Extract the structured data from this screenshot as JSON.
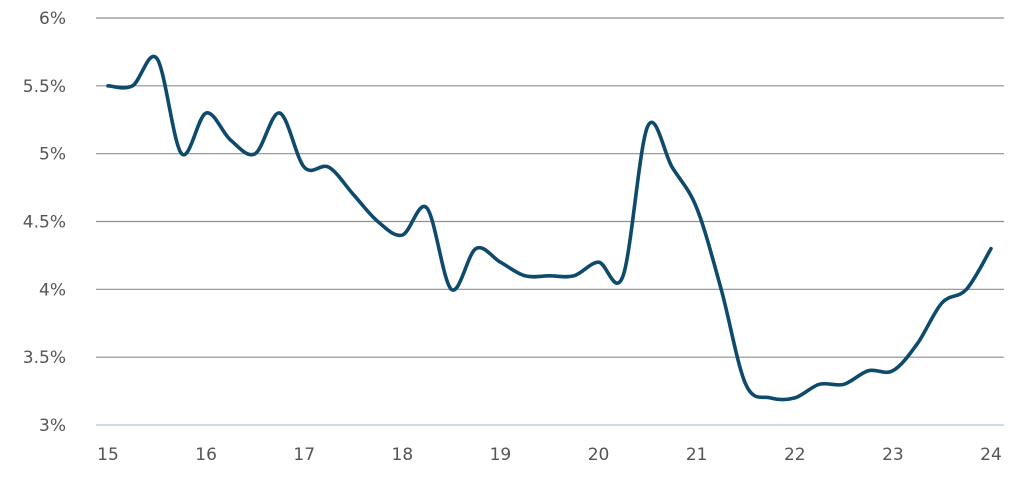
{
  "chart_data": {
    "type": "line",
    "title": "",
    "xlabel": "",
    "ylabel": "",
    "xlim": [
      15,
      24
    ],
    "ylim": [
      3,
      6
    ],
    "x_ticks": [
      15,
      16,
      17,
      18,
      19,
      20,
      21,
      22,
      23,
      24
    ],
    "x_tick_labels": [
      "15",
      "16",
      "17",
      "18",
      "19",
      "20",
      "21",
      "22",
      "23",
      "24"
    ],
    "y_ticks": [
      3,
      3.5,
      4,
      4.5,
      5,
      5.5,
      6
    ],
    "y_tick_labels": [
      "3%",
      "3.5%",
      "4%",
      "4.5%",
      "5%",
      "5.5%",
      "6%"
    ],
    "grid": "horizontal",
    "legend": "none",
    "colors": {
      "line": "#0d4a6b",
      "grid": "#8f8f8f",
      "baseline": "#b9d3e3"
    },
    "series": [
      {
        "x": [
          15.0,
          15.25,
          15.5,
          15.75,
          16.0,
          16.25,
          16.5,
          16.75,
          17.0,
          17.25,
          17.5,
          17.75,
          18.0,
          18.25,
          18.5,
          18.75,
          19.0,
          19.25,
          19.5,
          19.75,
          20.0,
          20.25,
          20.5,
          20.75,
          21.0,
          21.25,
          21.5,
          21.75,
          22.0,
          22.25,
          22.5,
          22.75,
          23.0,
          23.25,
          23.5,
          23.75,
          24.0
        ],
        "values": [
          5.5,
          5.5,
          5.7,
          5.0,
          5.3,
          5.1,
          5.0,
          5.3,
          4.9,
          4.9,
          4.7,
          4.5,
          4.4,
          4.6,
          4.0,
          4.3,
          4.2,
          4.1,
          4.1,
          4.1,
          4.2,
          4.1,
          5.2,
          4.9,
          4.6,
          4.0,
          3.3,
          3.2,
          3.2,
          3.3,
          3.3,
          3.4,
          3.4,
          3.6,
          3.9,
          4.0,
          4.3
        ]
      }
    ]
  }
}
